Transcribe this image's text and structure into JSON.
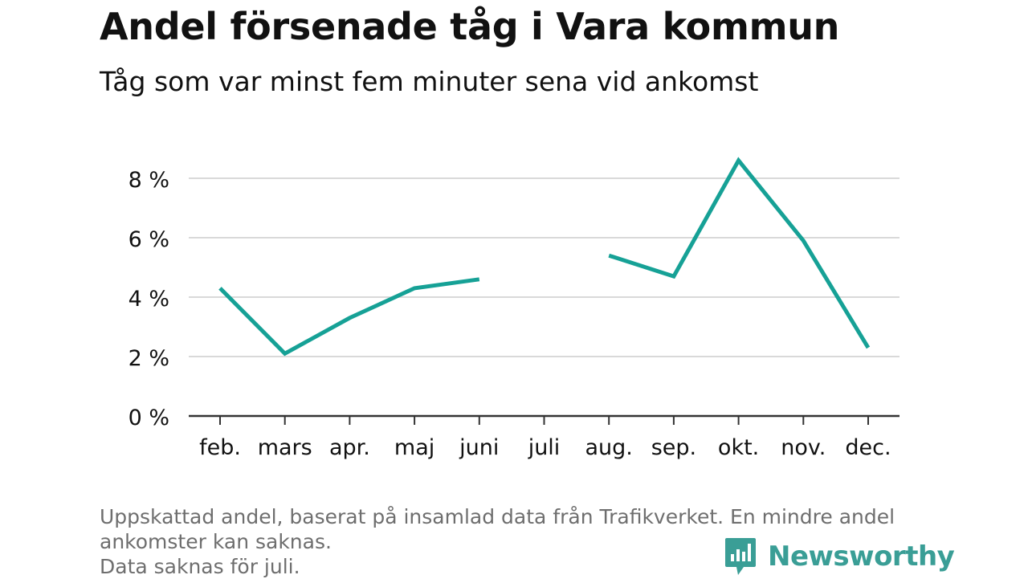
{
  "title": "Andel försenade tåg i Vara kommun",
  "subtitle": "Tåg som var minst fem minuter sena vid ankomst",
  "footnote": {
    "line1": "Uppskattad andel, baserat på insamlad data från Trafikverket. En mindre andel",
    "line2": "ankomster kan saknas.",
    "line3": "Data saknas för juli."
  },
  "brand": {
    "name": "Newsworthy",
    "icon": "newsworthy-logo-icon",
    "color": "#3a9e96"
  },
  "colors": {
    "line": "#16a196",
    "grid": "#d9d9d9",
    "axis": "#333333",
    "text": "#111111"
  },
  "chart_data": {
    "type": "line",
    "categories": [
      "feb.",
      "mars",
      "apr.",
      "maj",
      "juni",
      "juli",
      "aug.",
      "sep.",
      "okt.",
      "nov.",
      "dec."
    ],
    "series": [
      {
        "values": [
          4.3,
          2.1,
          3.3,
          4.3,
          4.6,
          null,
          5.4,
          4.7,
          8.6,
          5.9,
          2.3
        ]
      }
    ],
    "yticks": [
      "0 %",
      "2 %",
      "4 %",
      "6 %",
      "8 %"
    ],
    "ytick_values": [
      0,
      2,
      4,
      6,
      8
    ],
    "ylim": [
      0,
      8.8
    ],
    "xlabel": "",
    "ylabel": "",
    "grid": true
  }
}
